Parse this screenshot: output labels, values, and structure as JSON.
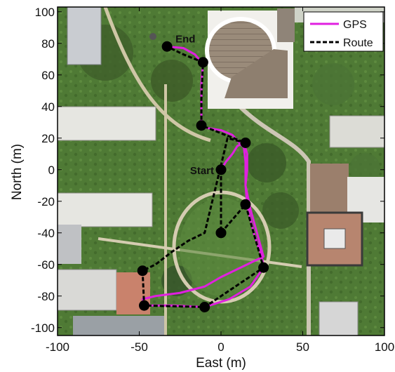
{
  "chart_data": {
    "type": "line",
    "title": "",
    "xlabel": "East (m)",
    "ylabel": "North (m)",
    "xlim": [
      -100,
      100
    ],
    "ylim": [
      -105,
      103
    ],
    "xticks": [
      -100,
      -50,
      0,
      50,
      100
    ],
    "yticks": [
      -100,
      -80,
      -60,
      -40,
      -20,
      0,
      20,
      40,
      60,
      80,
      100
    ],
    "grid": false,
    "background": "aerial photograph of campus (buildings, lawns, trees)",
    "legend": {
      "position": "top-right"
    },
    "series": [
      {
        "name": "GPS",
        "style": "solid",
        "color": "#e020e0",
        "x": [
          0,
          3,
          7,
          10,
          14,
          16,
          16,
          15,
          18,
          22,
          26,
          14,
          0,
          -10,
          -25,
          -40,
          -48,
          -47,
          -43,
          -30,
          -10,
          5,
          18,
          26,
          25,
          20,
          16,
          15,
          15,
          14,
          12,
          7,
          0,
          -12,
          -12,
          -12,
          -11,
          -16,
          -23,
          -33
        ],
        "y": [
          0,
          5,
          10,
          15,
          17,
          10,
          0,
          -10,
          -25,
          -40,
          -55,
          -61,
          -68,
          -74,
          -78,
          -80,
          -82,
          -85,
          -86,
          -86,
          -87,
          -82,
          -74,
          -62,
          -55,
          -40,
          -22,
          -10,
          5,
          14,
          16,
          22,
          25,
          27,
          40,
          55,
          67,
          73,
          77,
          78
        ]
      },
      {
        "name": "Route",
        "style": "dashed",
        "color": "#000000",
        "x": [
          0,
          0,
          15,
          26,
          -10,
          -47,
          -48,
          -40,
          -30,
          -20,
          -10,
          -10,
          4,
          15,
          -12,
          -12,
          -11,
          -23,
          -33
        ],
        "y": [
          0,
          -40,
          -22,
          -62,
          -87,
          -86,
          -64,
          -60,
          -52,
          -45,
          -40,
          -40,
          20,
          17,
          28,
          45,
          68,
          73,
          78
        ],
        "points_x": [
          0,
          0,
          15,
          26,
          -10,
          -47,
          -48,
          0,
          15,
          -12,
          -11,
          -33
        ],
        "points_y": [
          0,
          -40,
          -22,
          -62,
          -87,
          -86,
          -64,
          -40,
          17,
          28,
          68,
          78
        ]
      }
    ],
    "waypoints": [
      {
        "label": "Start",
        "x": 0,
        "y": 0
      },
      {
        "label": "End",
        "x": -33,
        "y": 78
      }
    ],
    "annotations": [
      "Start",
      "End"
    ]
  }
}
